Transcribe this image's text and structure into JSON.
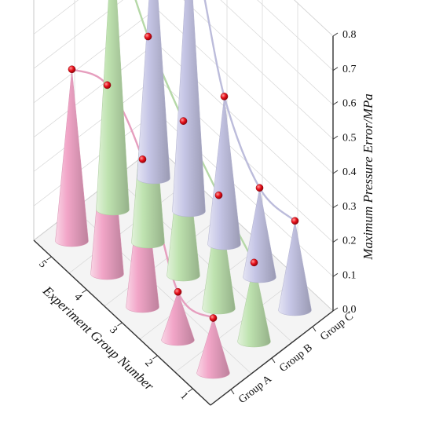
{
  "chart_data": {
    "type": "3d-cone",
    "title": "",
    "xlabel": "Experiment Group Number",
    "ylabel": "",
    "zlabel": "Maximum Pressure Error/MPa",
    "x_categories": [
      "1",
      "2",
      "3",
      "4",
      "5"
    ],
    "y_categories": [
      "Group A",
      "Group B",
      "Group C"
    ],
    "z_ticks": [
      "0.0",
      "0.1",
      "0.2",
      "0.3",
      "0.4",
      "0.5",
      "0.6",
      "0.7",
      "0.8"
    ],
    "zlim": [
      0,
      0.8
    ],
    "grid": true,
    "series": [
      {
        "name": "Group A",
        "color": "#f2a6c8",
        "values": [
          0.16,
          0.14,
          0.43,
          0.55,
          0.5
        ]
      },
      {
        "name": "Group B",
        "color": "#bfe3b0",
        "values": [
          0.23,
          0.33,
          0.45,
          0.6,
          0.82
        ]
      },
      {
        "name": "Group C",
        "color": "#c6c6e6",
        "values": [
          0.26,
          0.26,
          0.43,
          0.81,
          0.72
        ]
      }
    ]
  }
}
